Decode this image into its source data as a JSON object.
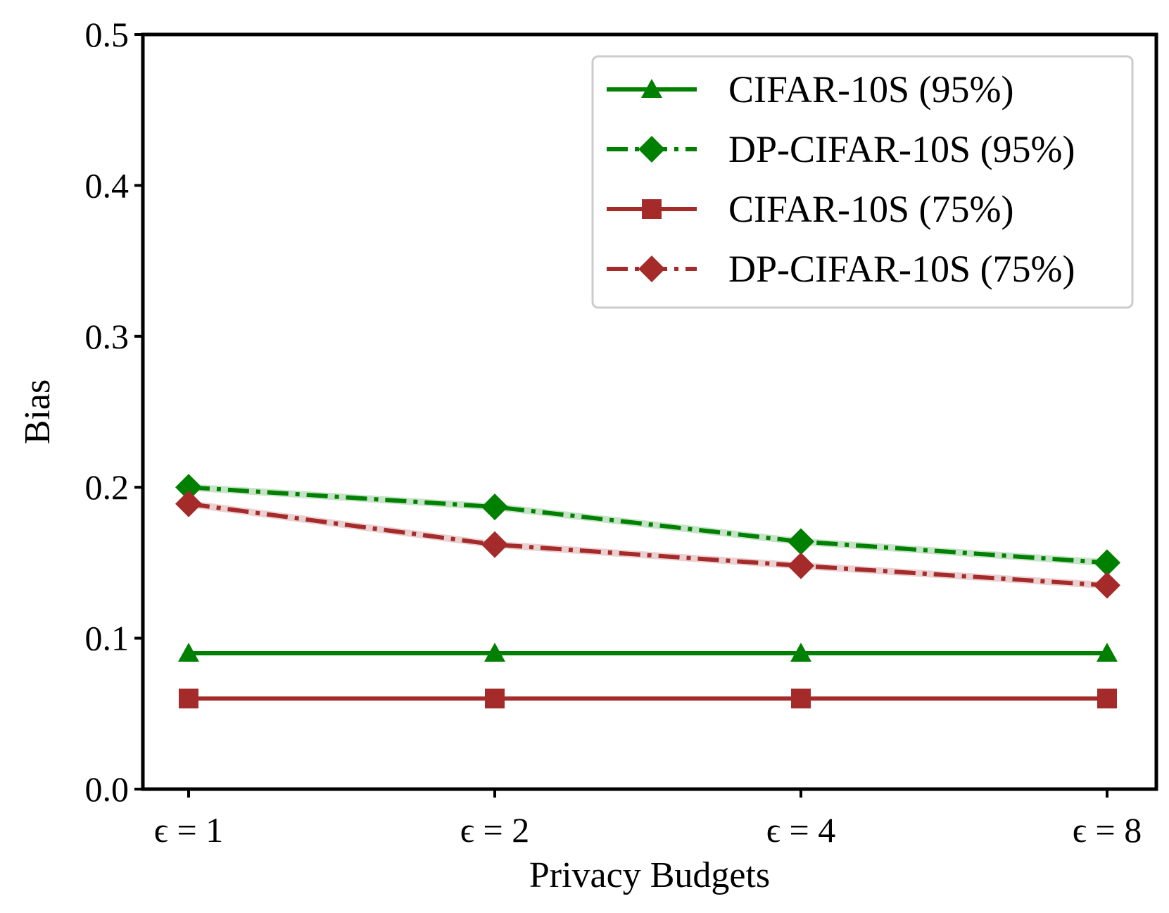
{
  "chart_data": {
    "type": "line",
    "title": "",
    "xlabel": "Privacy Budgets",
    "ylabel": "Bias",
    "categories": [
      "ϵ = 1",
      "ϵ = 2",
      "ϵ = 4",
      "ϵ = 8"
    ],
    "ylim": [
      0.0,
      0.5
    ],
    "yticks": [
      "0.0",
      "0.1",
      "0.2",
      "0.3",
      "0.4",
      "0.5"
    ],
    "grid": false,
    "legend_position": "top-right",
    "series": [
      {
        "name": "CIFAR-10S (95%)",
        "values": [
          0.09,
          0.09,
          0.09,
          0.09
        ],
        "color": "#008000",
        "marker": "triangle",
        "line_style": "solid"
      },
      {
        "name": "DP-CIFAR-10S (95%)",
        "values": [
          0.2,
          0.187,
          0.164,
          0.15
        ],
        "color": "#008000",
        "marker": "diamond",
        "line_style": "dashdot"
      },
      {
        "name": "CIFAR-10S (75%)",
        "values": [
          0.06,
          0.06,
          0.06,
          0.06
        ],
        "color": "#a52a2a",
        "marker": "square",
        "line_style": "solid"
      },
      {
        "name": "DP-CIFAR-10S (75%)",
        "values": [
          0.189,
          0.162,
          0.148,
          0.135
        ],
        "color": "#a52a2a",
        "marker": "diamond",
        "line_style": "dashdot"
      }
    ]
  }
}
